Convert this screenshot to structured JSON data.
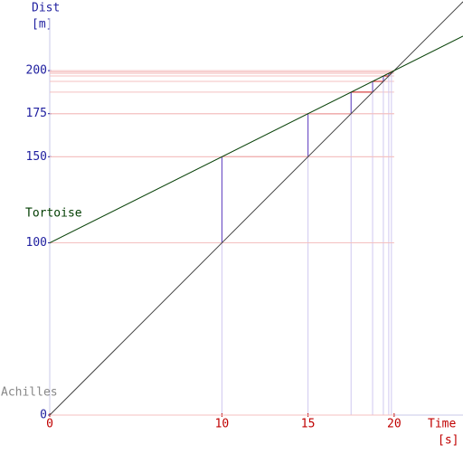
{
  "chart_data": {
    "type": "line",
    "x_label": "Time",
    "x_unit": "[s]",
    "y_label": "Dist",
    "y_unit": "[m]",
    "xlim": [
      0,
      24
    ],
    "ylim": [
      0,
      241
    ],
    "xticks": [
      0,
      10,
      15,
      20
    ],
    "yticks": [
      0,
      100,
      150,
      175,
      200
    ],
    "series": [
      {
        "name": "Achilles",
        "color": "#444444",
        "x": [
          0,
          24
        ],
        "values": [
          0,
          240
        ]
      },
      {
        "name": "Tortoise",
        "color": "#003d00",
        "x": [
          0,
          24
        ],
        "values": [
          100,
          220
        ]
      }
    ],
    "steps": {
      "x": [
        0,
        10,
        15,
        17.5,
        18.75,
        19.375,
        19.6875,
        19.84375
      ],
      "values": [
        100,
        150,
        175,
        187.5,
        193.75,
        196.875,
        198.4375,
        199.21875
      ],
      "h_color": "#d02020",
      "v_color": "#6040c0"
    },
    "x_tick_color": "#c00000",
    "y_tick_color": "#2020a0"
  }
}
